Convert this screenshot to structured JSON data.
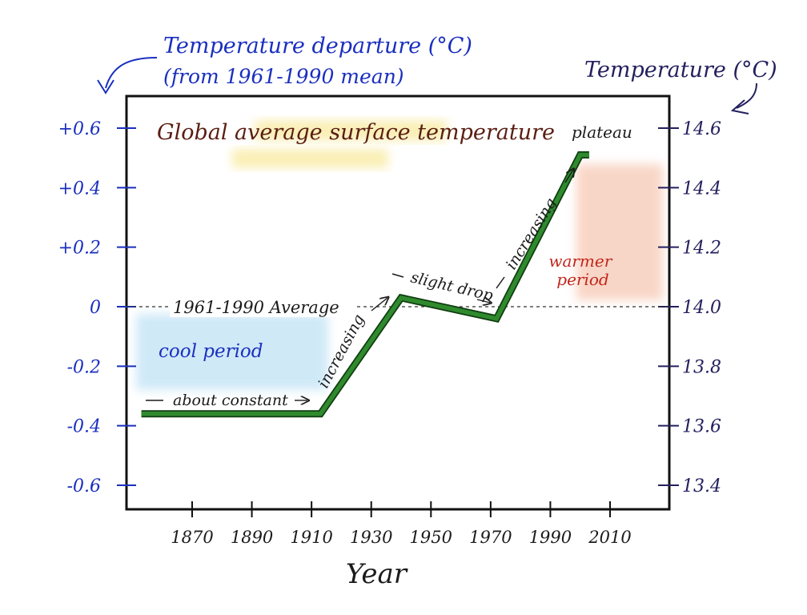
{
  "chart_data": {
    "type": "line",
    "title": "Global average surface temperature",
    "xlabel": "Year",
    "ylabel_left": "Temperature departure (°C)",
    "ylabel_left_sub": "(from 1961-1990 mean)",
    "ylabel_right": "Temperature (°C)",
    "x_ticks": [
      1870,
      1890,
      1910,
      1930,
      1950,
      1970,
      1990,
      2010
    ],
    "x_tick_labels": [
      "1870",
      "1890",
      "1910",
      "1930",
      "1950",
      "1970",
      "1990",
      "2010"
    ],
    "y_left_ticks": [
      0.6,
      0.4,
      0.2,
      0,
      -0.2,
      -0.4,
      -0.6
    ],
    "y_left_tick_labels": [
      "+0.6",
      "+0.4",
      "+0.2",
      "0",
      "-0.2",
      "-0.4",
      "-0.6"
    ],
    "y_right_ticks": [
      14.6,
      14.4,
      14.2,
      14.0,
      13.8,
      13.6,
      13.4
    ],
    "y_right_tick_labels": [
      "14.6",
      "14.4",
      "14.2",
      "14.0",
      "13.8",
      "13.6",
      "13.4"
    ],
    "xlim": [
      1850,
      2030
    ],
    "ylim": [
      -0.7,
      0.72
    ],
    "series": [
      {
        "x": [
          1853,
          1913,
          1940,
          1972,
          2000,
          2003
        ],
        "y": [
          -0.36,
          -0.36,
          0.03,
          -0.04,
          0.51,
          0.51
        ]
      }
    ],
    "reference_line": {
      "y": 0,
      "label": "1961-1990 Average"
    },
    "annotations": {
      "about_constant": "about constant",
      "increasing_1": "increasing",
      "slight_drop": "slight drop",
      "increasing_2": "increasing",
      "plateau": "plateau",
      "cool_period": "cool period",
      "warmer_period": "warmer period"
    },
    "colors": {
      "line": "#2f8a2e",
      "line_dark": "#0f3d10",
      "left_axis_ink": "#1a2fbf",
      "right_axis_ink": "#24205e",
      "cool_shade": "#a9d8f2",
      "warm_shade": "#f4b59a",
      "title_highlight": "#f6e27a",
      "warmer_text": "#c2261c"
    }
  }
}
